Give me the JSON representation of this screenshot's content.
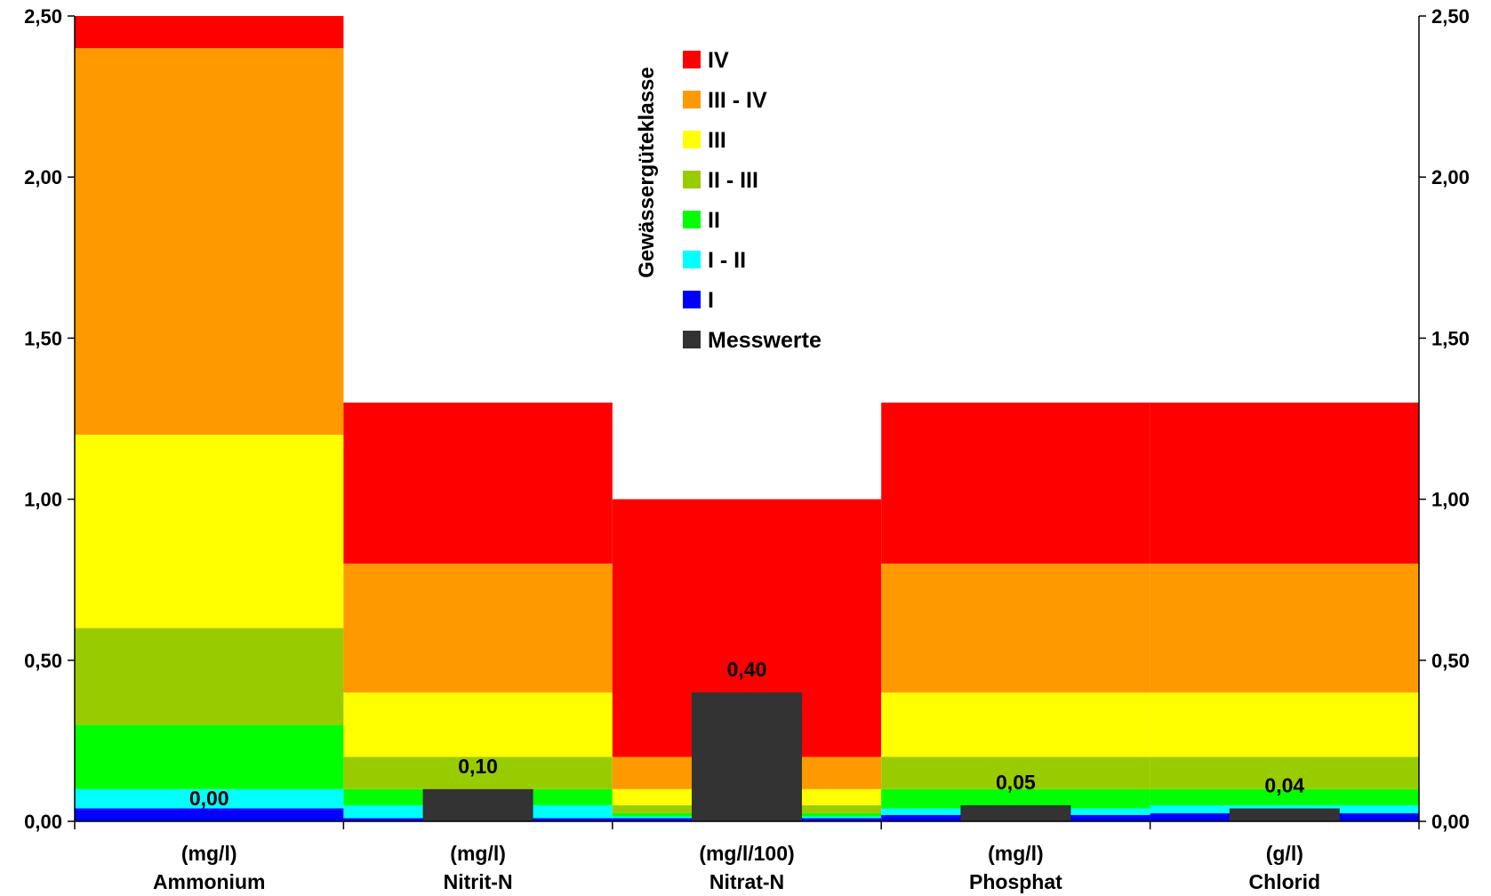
{
  "chart_data": {
    "type": "bar",
    "stacked_background": true,
    "categories": [
      {
        "unit": "(mg/l)",
        "name": "Ammonium"
      },
      {
        "unit": "(mg/l)",
        "name": "Nitrit-N"
      },
      {
        "unit": "(mg/l/100)",
        "name": "Nitrat-N"
      },
      {
        "unit": "(mg/l)",
        "name": "Phosphat"
      },
      {
        "unit": "(g/l)",
        "name": "Chlorid"
      }
    ],
    "ylim": [
      0,
      2.5
    ],
    "yticks": [
      "0,00",
      "0,50",
      "1,00",
      "1,50",
      "2,00",
      "2,50"
    ],
    "ytick_values": [
      0,
      0.5,
      1.0,
      1.5,
      2.0,
      2.5
    ],
    "secondary_axis": true,
    "legend_title": "Gewässergüteklasse",
    "legend_position": "top-center",
    "classes": [
      {
        "name": "IV",
        "color": "#ff0000"
      },
      {
        "name": "III - IV",
        "color": "#ff9900"
      },
      {
        "name": "III",
        "color": "#ffff00"
      },
      {
        "name": "II - III",
        "color": "#99cc00"
      },
      {
        "name": "II",
        "color": "#00ff00"
      },
      {
        "name": "I - II",
        "color": "#00ffff"
      },
      {
        "name": "I",
        "color": "#0000ff"
      }
    ],
    "class_thresholds": [
      {
        "category": "Ammonium",
        "I": 0.04,
        "I - II": 0.1,
        "II": 0.3,
        "II - III": 0.6,
        "III": 1.2,
        "III - IV": 2.4,
        "IV": 2.5
      },
      {
        "category": "Nitrit-N",
        "I": 0.01,
        "I - II": 0.05,
        "II": 0.1,
        "II - III": 0.2,
        "III": 0.4,
        "III - IV": 0.8,
        "IV": 1.3
      },
      {
        "category": "Nitrat-N",
        "I": 0.01,
        "I - II": 0.015,
        "II": 0.025,
        "II - III": 0.05,
        "III": 0.1,
        "III - IV": 0.2,
        "IV": 1.0
      },
      {
        "category": "Phosphat",
        "I": 0.02,
        "I - II": 0.04,
        "II": 0.1,
        "II - III": 0.2,
        "III": 0.4,
        "III - IV": 0.8,
        "IV": 1.3
      },
      {
        "category": "Chlorid",
        "I": 0.025,
        "I - II": 0.05,
        "II": 0.1,
        "II - III": 0.2,
        "III": 0.4,
        "III - IV": 0.8,
        "IV": 1.3
      }
    ],
    "series": [
      {
        "name": "Messwerte",
        "color": "#333333",
        "values": [
          0.0,
          0.1,
          0.4,
          0.05,
          0.04
        ],
        "labels": [
          "0,00",
          "0,10",
          "0,40",
          "0,05",
          "0,04"
        ]
      }
    ]
  }
}
